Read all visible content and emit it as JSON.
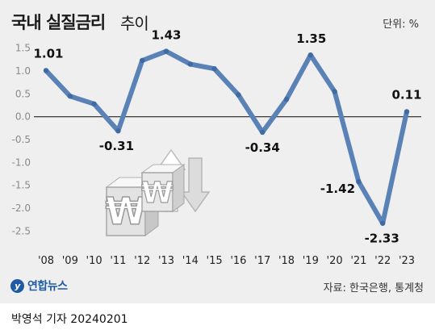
{
  "header": {
    "title_main": "국내 실질금리",
    "title_sub": "추이",
    "unit": "단위: %"
  },
  "footer": {
    "logo_text": "연합뉴스",
    "source": "자료: 한국은행, 통계청",
    "credit": "박영석 기자  20240201"
  },
  "colors": {
    "line": "#5b82b6",
    "zero_line": "#222222",
    "background": "#efefef",
    "tick_text": "#8a8a8a",
    "label_text": "#111111"
  },
  "chart_data": {
    "type": "line",
    "title": "국내 실질금리 추이",
    "x": [
      "'08",
      "'09",
      "'10",
      "'11",
      "'12",
      "'13",
      "'14",
      "'15",
      "'16",
      "'17",
      "'18",
      "'19",
      "'20",
      "'21",
      "'22",
      "'23"
    ],
    "series": [
      {
        "values": [
          1.01,
          0.45,
          0.28,
          -0.31,
          1.23,
          1.43,
          1.15,
          1.05,
          0.48,
          -0.34,
          0.38,
          1.35,
          0.55,
          -1.42,
          -2.33,
          0.11
        ]
      }
    ],
    "data_labels": [
      {
        "x": "'08",
        "text": "1.01"
      },
      {
        "x": "'11",
        "text": "-0.31"
      },
      {
        "x": "'13",
        "text": "1.43"
      },
      {
        "x": "'17",
        "text": "-0.34"
      },
      {
        "x": "'19",
        "text": "1.35"
      },
      {
        "x": "'21",
        "text": "-1.42"
      },
      {
        "x": "'22",
        "text": "-2.33"
      },
      {
        "x": "'23",
        "text": "0.11"
      }
    ],
    "yticks": [
      "1.5",
      "1.0",
      "0.5",
      "0.0",
      "-0.5",
      "-1.0",
      "-1.5",
      "-2.0",
      "-2.5"
    ],
    "ylim": [
      -2.75,
      1.75
    ],
    "grid": false,
    "xlabel": "",
    "ylabel": ""
  }
}
